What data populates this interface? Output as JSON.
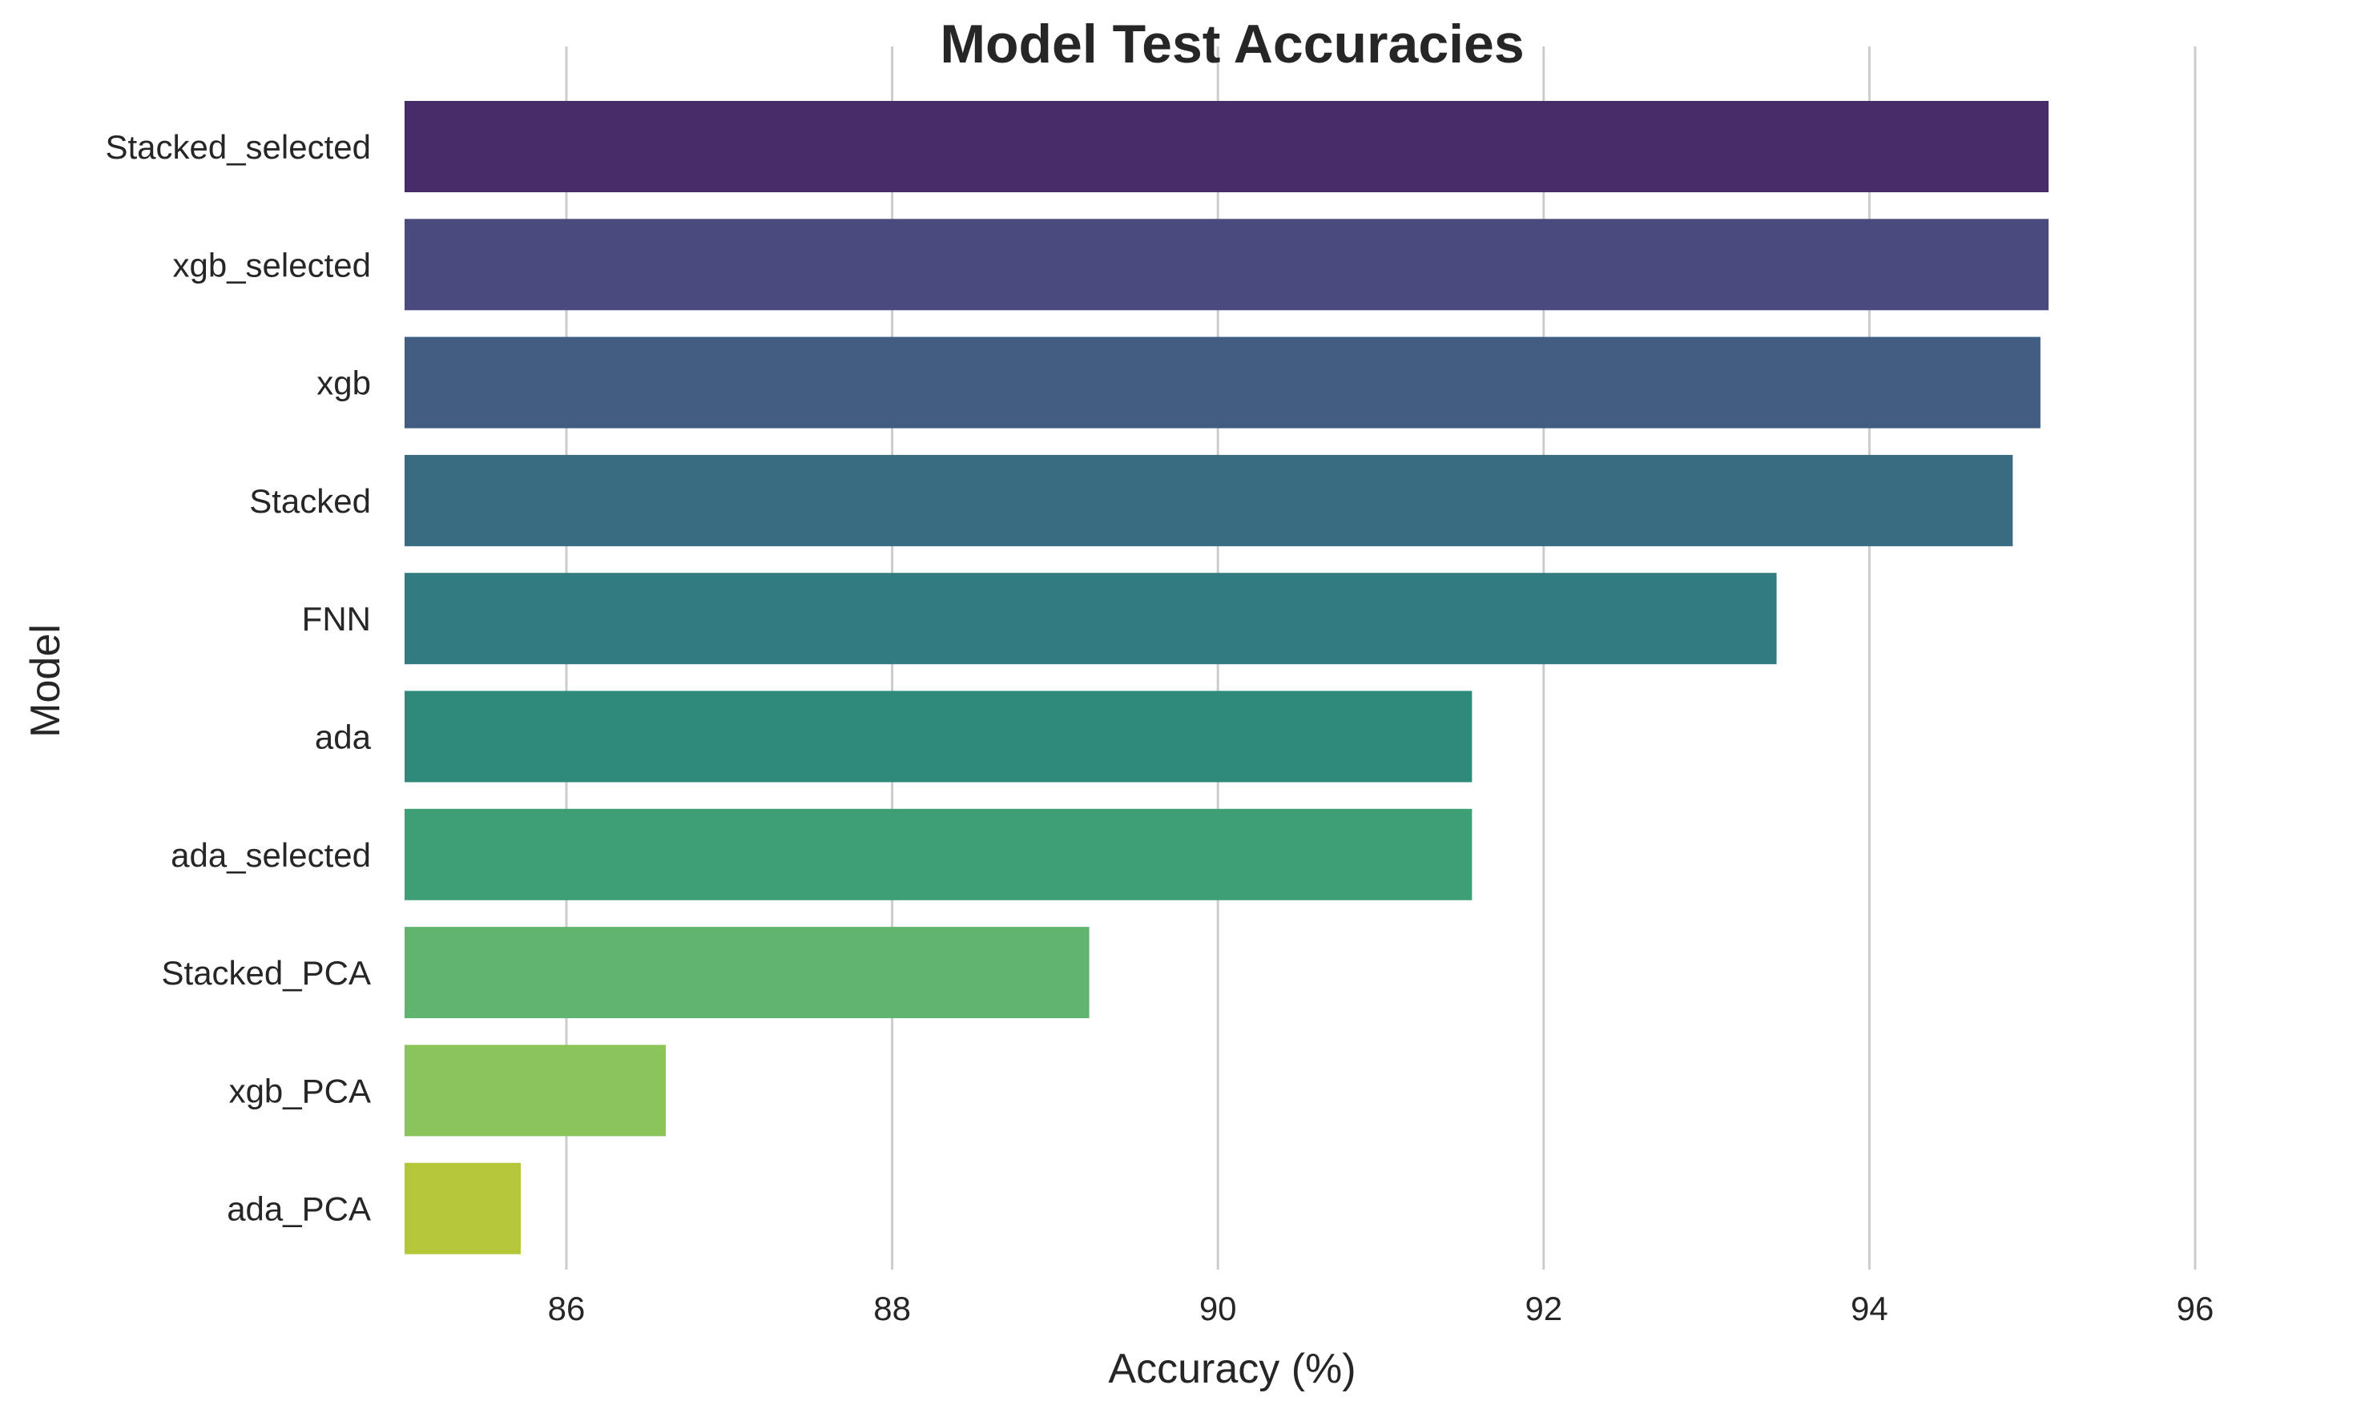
{
  "chart_data": {
    "type": "bar",
    "orientation": "horizontal",
    "title": "Model Test Accuracies",
    "xlabel": "Accuracy (%)",
    "ylabel": "Model",
    "categories": [
      "Stacked_selected",
      "xgb_selected",
      "xgb",
      "Stacked",
      "FNN",
      "ada",
      "ada_selected",
      "Stacked_PCA",
      "xgb_PCA",
      "ada_PCA"
    ],
    "values": [
      95.1,
      95.1,
      95.05,
      94.88,
      93.43,
      91.56,
      91.56,
      89.21,
      86.61,
      85.72
    ],
    "xlim": [
      85,
      97
    ],
    "xticks": [
      86,
      88,
      90,
      92,
      94,
      96
    ],
    "grid": true,
    "colors": [
      "#482c6a",
      "#4a4a7e",
      "#435c82",
      "#396c80",
      "#327b80",
      "#2f8a7a",
      "#3e9e76",
      "#61b46f",
      "#8ac45b",
      "#b3c739"
    ]
  }
}
